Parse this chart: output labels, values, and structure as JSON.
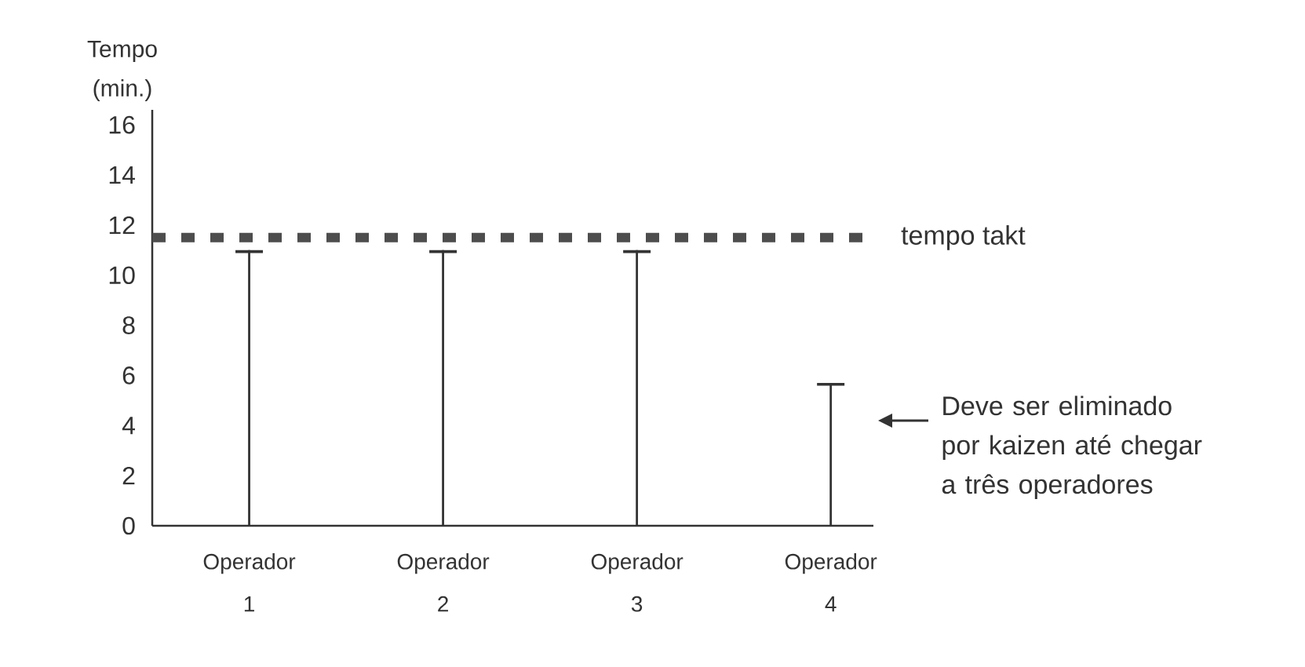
{
  "chart_data": {
    "type": "bar",
    "ylabel": "Tempo (min.)",
    "categories": [
      "Operador 1",
      "Operador 2",
      "Operador 3",
      "Operador 4"
    ],
    "values": [
      11,
      11,
      11,
      5.7
    ],
    "color": "#333333",
    "ylim": [
      0,
      16.6
    ],
    "yticks": [
      0,
      2,
      4,
      6,
      8,
      10,
      12,
      14,
      16
    ],
    "ref_lines": [
      {
        "axis": "y",
        "value": 11.5,
        "label": "tempo takt",
        "color": "#4d4d4d",
        "line_style": "dashed"
      }
    ],
    "annotations": [
      "Deve ser eliminado por kaizen até chegar a três operadores"
    ]
  }
}
